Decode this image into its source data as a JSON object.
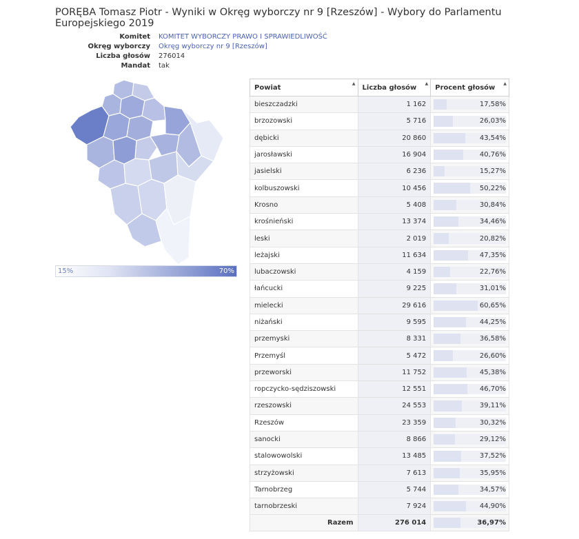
{
  "title": "PORĘBA Tomasz Piotr - Wyniki w Okręg wyborczy nr 9 [Rzeszów] - Wybory do Parlamentu Europejskiego 2019",
  "meta": {
    "komitet_label": "Komitet",
    "komitet_value": "KOMITET WYBORCZY PRAWO I SPRAWIEDLIWOŚĆ",
    "okreg_label": "Okręg wyborczy",
    "okreg_value": "Okręg wyborczy nr 9 [Rzeszów]",
    "glosy_label": "Liczba głosów",
    "glosy_value": "276014",
    "mandat_label": "Mandat",
    "mandat_value": "tak"
  },
  "legend": {
    "min": "15%",
    "max": "70%"
  },
  "colors": {
    "accent": "#4a62b0",
    "map_dark": "#6b7fc9",
    "map_light": "#eef0f8"
  },
  "table": {
    "headers": {
      "powiat": "Powiat",
      "liczba": "Liczba głosów",
      "procent": "Procent głosów"
    },
    "rows": [
      {
        "powiat": "bieszczadzki",
        "liczba": "1 162",
        "procent": "17,58%",
        "pct": 17.58
      },
      {
        "powiat": "brzozowski",
        "liczba": "5 716",
        "procent": "26,03%",
        "pct": 26.03
      },
      {
        "powiat": "dębicki",
        "liczba": "20 860",
        "procent": "43,54%",
        "pct": 43.54
      },
      {
        "powiat": "jarosławski",
        "liczba": "16 904",
        "procent": "40,76%",
        "pct": 40.76
      },
      {
        "powiat": "jasielski",
        "liczba": "6 236",
        "procent": "15,27%",
        "pct": 15.27
      },
      {
        "powiat": "kolbuszowski",
        "liczba": "10 456",
        "procent": "50,22%",
        "pct": 50.22
      },
      {
        "powiat": "Krosno",
        "liczba": "5 408",
        "procent": "30,84%",
        "pct": 30.84
      },
      {
        "powiat": "krośnieński",
        "liczba": "13 374",
        "procent": "34,46%",
        "pct": 34.46
      },
      {
        "powiat": "leski",
        "liczba": "2 019",
        "procent": "20,82%",
        "pct": 20.82
      },
      {
        "powiat": "leżajski",
        "liczba": "11 634",
        "procent": "47,35%",
        "pct": 47.35
      },
      {
        "powiat": "lubaczowski",
        "liczba": "4 159",
        "procent": "22,76%",
        "pct": 22.76
      },
      {
        "powiat": "łańcucki",
        "liczba": "9 225",
        "procent": "31,01%",
        "pct": 31.01
      },
      {
        "powiat": "mielecki",
        "liczba": "29 616",
        "procent": "60,65%",
        "pct": 60.65
      },
      {
        "powiat": "niżański",
        "liczba": "9 595",
        "procent": "44,25%",
        "pct": 44.25
      },
      {
        "powiat": "przemyski",
        "liczba": "8 331",
        "procent": "36,58%",
        "pct": 36.58
      },
      {
        "powiat": "Przemyśl",
        "liczba": "5 472",
        "procent": "26,60%",
        "pct": 26.6
      },
      {
        "powiat": "przeworski",
        "liczba": "11 752",
        "procent": "45,38%",
        "pct": 45.38
      },
      {
        "powiat": "ropczycko-sędziszowski",
        "liczba": "12 551",
        "procent": "46,70%",
        "pct": 46.7
      },
      {
        "powiat": "rzeszowski",
        "liczba": "24 553",
        "procent": "39,11%",
        "pct": 39.11
      },
      {
        "powiat": "Rzeszów",
        "liczba": "23 359",
        "procent": "30,32%",
        "pct": 30.32
      },
      {
        "powiat": "sanocki",
        "liczba": "8 866",
        "procent": "29,12%",
        "pct": 29.12
      },
      {
        "powiat": "stalowowolski",
        "liczba": "13 485",
        "procent": "37,52%",
        "pct": 37.52
      },
      {
        "powiat": "strzyżowski",
        "liczba": "7 613",
        "procent": "35,95%",
        "pct": 35.95
      },
      {
        "powiat": "Tarnobrzeg",
        "liczba": "5 744",
        "procent": "34,57%",
        "pct": 34.57
      },
      {
        "powiat": "tarnobrzeski",
        "liczba": "7 924",
        "procent": "44,90%",
        "pct": 44.9
      }
    ],
    "total": {
      "label": "Razem",
      "liczba": "276 014",
      "procent": "36,97%",
      "pct": 36.97
    }
  }
}
